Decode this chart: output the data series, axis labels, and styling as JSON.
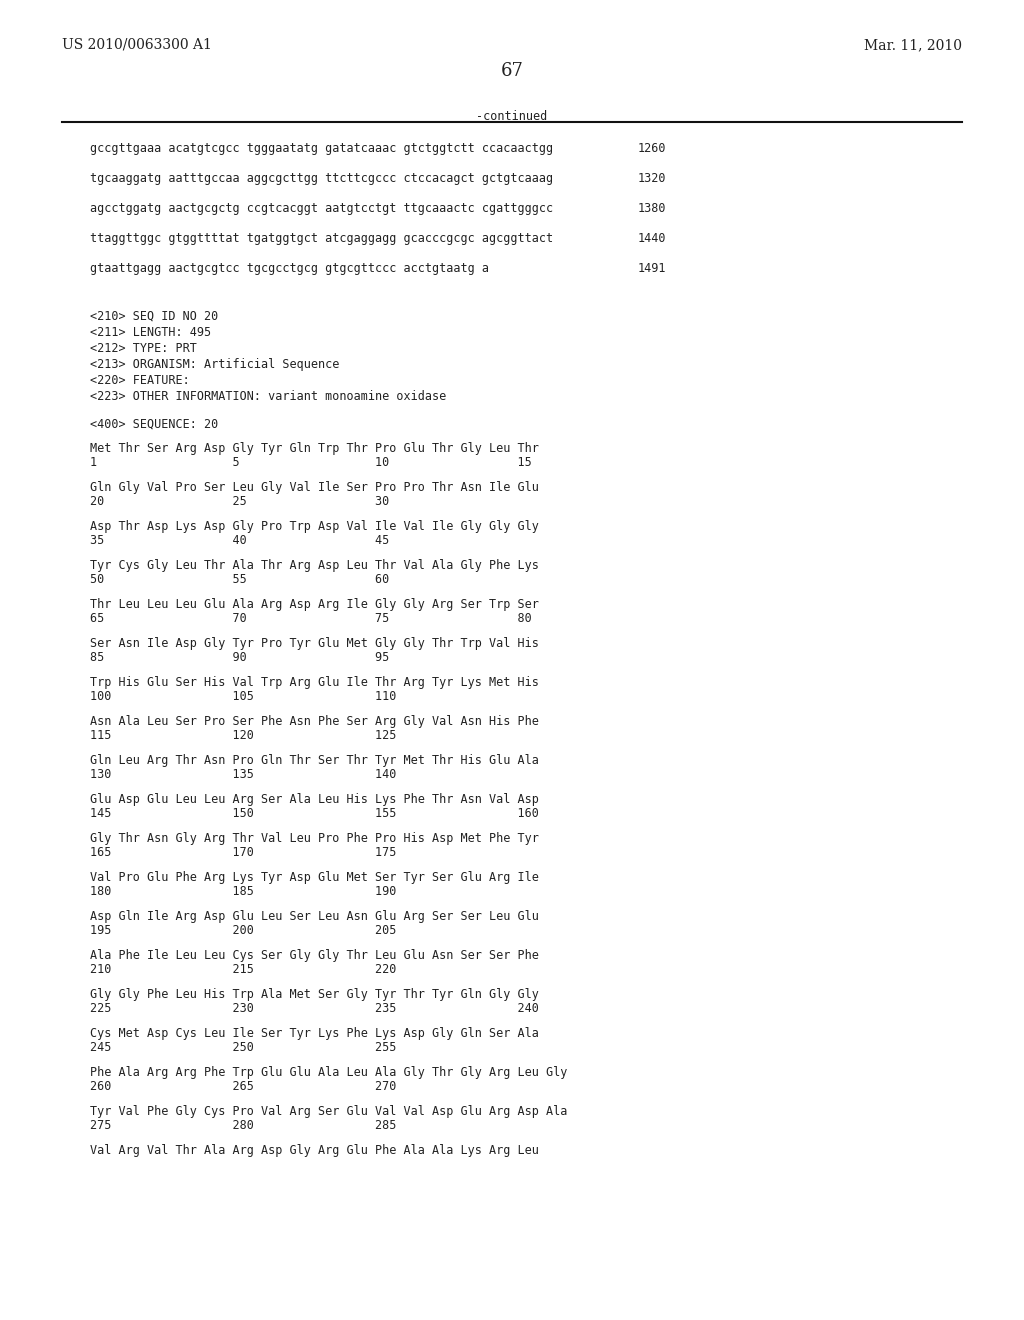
{
  "header_left": "US 2010/0063300 A1",
  "header_right": "Mar. 11, 2010",
  "page_number": "67",
  "continued_label": "-continued",
  "background_color": "#ffffff",
  "text_color": "#222222",
  "font_size_header": 10.0,
  "font_size_body": 8.5,
  "font_size_page": 13,
  "sequence_lines": [
    {
      "text": "gccgttgaaa acatgtcgcc tgggaatatg gatatcaaac gtctggtctt ccacaactgg",
      "number": "1260"
    },
    {
      "text": "tgcaaggatg aatttgccaa aggcgcttgg ttcttcgccc ctccacagct gctgtcaaag",
      "number": "1320"
    },
    {
      "text": "agcctggatg aactgcgctg ccgtcacggt aatgtcctgt ttgcaaactc cgattgggcc",
      "number": "1380"
    },
    {
      "text": "ttaggttggc gtggttttat tgatggtgct atcgaggagg gcacccgcgc agcggttact",
      "number": "1440"
    },
    {
      "text": "gtaattgagg aactgcgtcc tgcgcctgcg gtgcgttccc acctgtaatg a",
      "number": "1491"
    }
  ],
  "metadata_lines": [
    "<210> SEQ ID NO 20",
    "<211> LENGTH: 495",
    "<212> TYPE: PRT",
    "<213> ORGANISM: Artificial Sequence",
    "<220> FEATURE:",
    "<223> OTHER INFORMATION: variant monoamine oxidase"
  ],
  "seq_label": "<400> SEQUENCE: 20",
  "protein_blocks": [
    {
      "seq": "Met Thr Ser Arg Asp Gly Tyr Gln Trp Thr Pro Glu Thr Gly Leu Thr",
      "nums": "1                   5                   10                  15"
    },
    {
      "seq": "Gln Gly Val Pro Ser Leu Gly Val Ile Ser Pro Pro Thr Asn Ile Glu",
      "nums": "20                  25                  30"
    },
    {
      "seq": "Asp Thr Asp Lys Asp Gly Pro Trp Asp Val Ile Val Ile Gly Gly Gly",
      "nums": "35                  40                  45"
    },
    {
      "seq": "Tyr Cys Gly Leu Thr Ala Thr Arg Asp Leu Thr Val Ala Gly Phe Lys",
      "nums": "50                  55                  60"
    },
    {
      "seq": "Thr Leu Leu Leu Glu Ala Arg Asp Arg Ile Gly Gly Arg Ser Trp Ser",
      "nums": "65                  70                  75                  80"
    },
    {
      "seq": "Ser Asn Ile Asp Gly Tyr Pro Tyr Glu Met Gly Gly Thr Trp Val His",
      "nums": "85                  90                  95"
    },
    {
      "seq": "Trp His Glu Ser His Val Trp Arg Glu Ile Thr Arg Tyr Lys Met His",
      "nums": "100                 105                 110"
    },
    {
      "seq": "Asn Ala Leu Ser Pro Ser Phe Asn Phe Ser Arg Gly Val Asn His Phe",
      "nums": "115                 120                 125"
    },
    {
      "seq": "Gln Leu Arg Thr Asn Pro Gln Thr Ser Thr Tyr Met Thr His Glu Ala",
      "nums": "130                 135                 140"
    },
    {
      "seq": "Glu Asp Glu Leu Leu Arg Ser Ala Leu His Lys Phe Thr Asn Val Asp",
      "nums": "145                 150                 155                 160"
    },
    {
      "seq": "Gly Thr Asn Gly Arg Thr Val Leu Pro Phe Pro His Asp Met Phe Tyr",
      "nums": "165                 170                 175"
    },
    {
      "seq": "Val Pro Glu Phe Arg Lys Tyr Asp Glu Met Ser Tyr Ser Glu Arg Ile",
      "nums": "180                 185                 190"
    },
    {
      "seq": "Asp Gln Ile Arg Asp Glu Leu Ser Leu Asn Glu Arg Ser Ser Leu Glu",
      "nums": "195                 200                 205"
    },
    {
      "seq": "Ala Phe Ile Leu Leu Cys Ser Gly Gly Thr Leu Glu Asn Ser Ser Phe",
      "nums": "210                 215                 220"
    },
    {
      "seq": "Gly Gly Phe Leu His Trp Ala Met Ser Gly Tyr Thr Tyr Gln Gly Gly",
      "nums": "225                 230                 235                 240"
    },
    {
      "seq": "Cys Met Asp Cys Leu Ile Ser Tyr Lys Phe Lys Asp Gly Gln Ser Ala",
      "nums": "245                 250                 255"
    },
    {
      "seq": "Phe Ala Arg Arg Phe Trp Glu Glu Ala Leu Ala Gly Thr Gly Arg Leu Gly",
      "nums": "260                 265                 270"
    },
    {
      "seq": "Tyr Val Phe Gly Cys Pro Val Arg Ser Glu Val Val Asp Glu Arg Asp Ala",
      "nums": "275                 280                 285"
    },
    {
      "seq": "Val Arg Val Thr Ala Arg Asp Gly Arg Glu Phe Ala Ala Lys Arg Leu",
      "nums": ""
    }
  ]
}
